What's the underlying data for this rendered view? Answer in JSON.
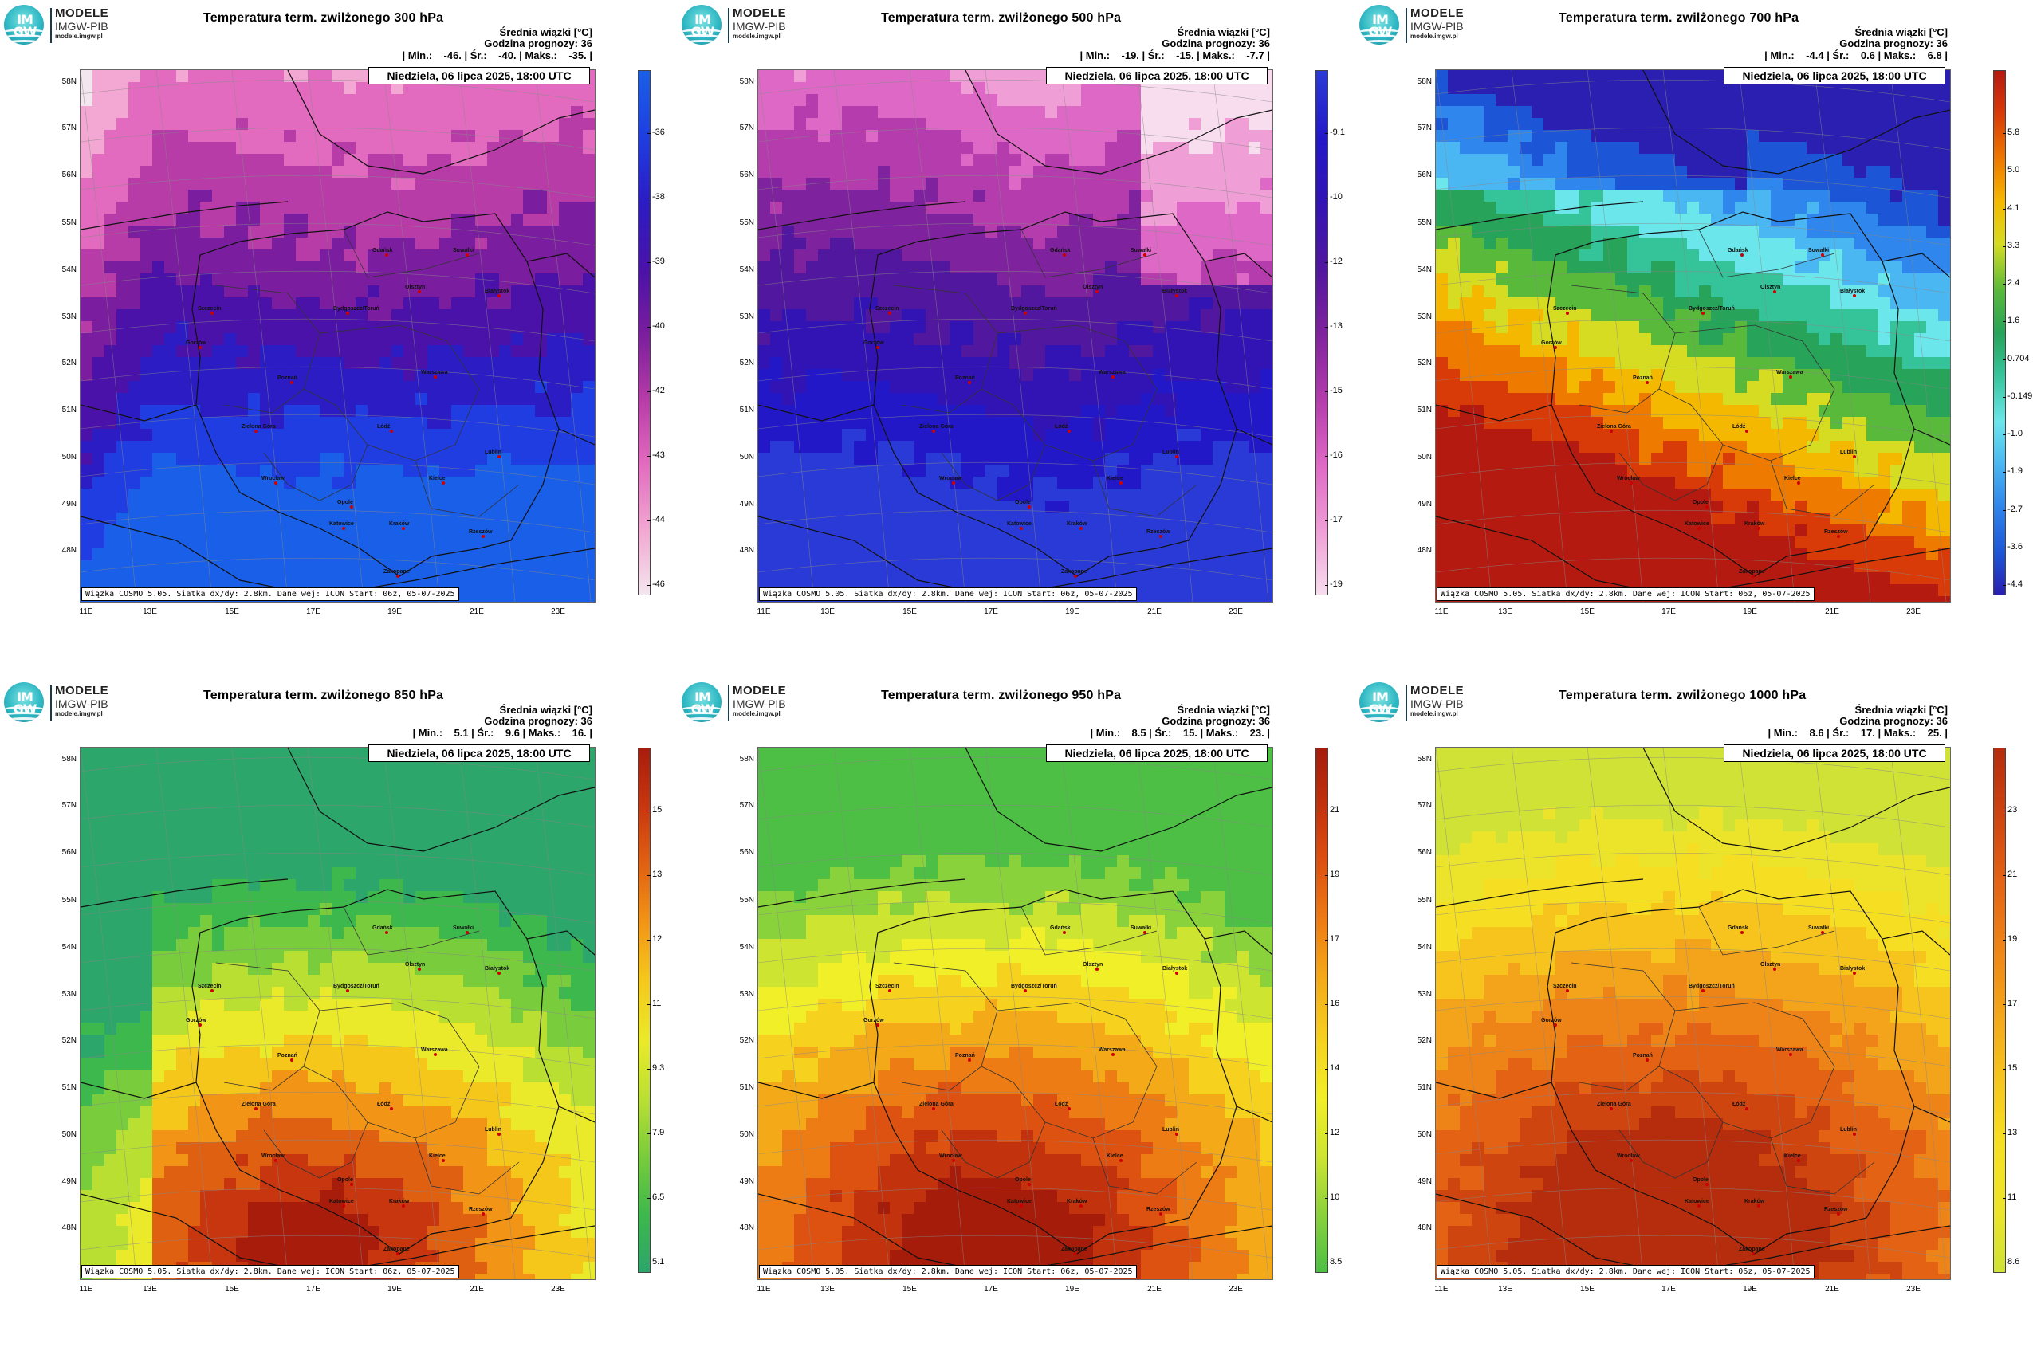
{
  "logo": {
    "brand_line1": "MODELE",
    "brand_line2": "IMGW-PIB",
    "url": "modele.imgw.pl",
    "mark_top": "IM",
    "mark_bottom": "GW"
  },
  "common": {
    "info_line1": "Średnia wiązki [°C]",
    "info_line2": "Godzina prognozy: 36",
    "date": "Niedziela, 06 lipca 2025, 18:00 UTC",
    "footer": "Wiązka COSMO 5.05. Siatka dx/dy: 2.8km. Dane wej: ICON Start: 06z, 05-07-2025",
    "lat_labels": [
      "58N",
      "57N",
      "56N",
      "55N",
      "54N",
      "53N",
      "52N",
      "51N",
      "50N",
      "49N",
      "48N"
    ],
    "lon_labels": [
      "11E",
      "13E",
      "15E",
      "17E",
      "19E",
      "21E",
      "23E"
    ]
  },
  "panels": [
    {
      "title": "Temperatura term. zwilżonego 300 hPa",
      "stats": "| Min.:    -46. | Śr.:    -40. | Maks.:    -35. |",
      "palette": "cold300",
      "colorbar_ticks": [
        "-36",
        "-38",
        "-39",
        "-40",
        "-42",
        "-43",
        "-44",
        "-46"
      ]
    },
    {
      "title": "Temperatura term. zwilżonego 500 hPa",
      "stats": "| Min.:    -19. | Śr.:    -15. | Maks.:    -7.7 |",
      "palette": "cold500",
      "colorbar_ticks": [
        "-9.1",
        "-10",
        "-12",
        "-13",
        "-15",
        "-16",
        "-17",
        "-19"
      ]
    },
    {
      "title": "Temperatura term. zwilżonego 700 hPa",
      "stats": "| Min.:    -4.4 | Śr.:    0.6 | Maks.:    6.8 |",
      "palette": "mid700",
      "colorbar_ticks": [
        "5.8",
        "5.0",
        "4.1",
        "3.3",
        "2.4",
        "1.6",
        "0.704",
        "-0.149",
        "-1.0",
        "-1.9",
        "-2.7",
        "-3.6",
        "-4.4"
      ]
    },
    {
      "title": "Temperatura term. zwilżonego 850 hPa",
      "stats": "| Min.:    5.1 | Śr.:    9.6 | Maks.:    16. |",
      "palette": "warm850",
      "colorbar_ticks": [
        "15",
        "13",
        "12",
        "11",
        "9.3",
        "7.9",
        "6.5",
        "5.1"
      ]
    },
    {
      "title": "Temperatura term. zwilżonego 950 hPa",
      "stats": "| Min.:    8.5 | Śr.:    15. | Maks.:    23. |",
      "palette": "warm950",
      "colorbar_ticks": [
        "21",
        "19",
        "17",
        "16",
        "14",
        "12",
        "10",
        "8.5"
      ]
    },
    {
      "title": "Temperatura term. zwilżonego 1000 hPa",
      "stats": "| Min.:    8.6 | Śr.:    17. | Maks.:    25. |",
      "palette": "warm1000",
      "colorbar_ticks": [
        "23",
        "21",
        "19",
        "17",
        "15",
        "13",
        "11",
        "8.6"
      ]
    }
  ],
  "cities": [
    "Gdańsk",
    "Olsztyn",
    "Suwałki",
    "Szczecin",
    "Bydgoszcz/Toruń",
    "Białystok",
    "Gorzów",
    "Poznań",
    "Warszawa",
    "Zielona Góra",
    "Łódź",
    "Lublin",
    "Wrocław",
    "Kielce",
    "Opole",
    "Katowice",
    "Kraków",
    "Rzeszów",
    "Zakopane"
  ],
  "colors": {
    "cold300": [
      "#f4e6ee",
      "#f2a8d2",
      "#e26bbf",
      "#b73ca8",
      "#7a1d9e",
      "#4a12a8",
      "#2b1cc4",
      "#1f3de0",
      "#1a5fe8"
    ],
    "cold500": [
      "#f7ddee",
      "#ef9fd6",
      "#de68c5",
      "#b43cad",
      "#7f229e",
      "#52179f",
      "#3214b4",
      "#2318c8",
      "#2a3ad6"
    ],
    "mid700": [
      "#2a1fb0",
      "#1c56d6",
      "#2f86ec",
      "#4ab7f2",
      "#6be6ea",
      "#35c49a",
      "#27a35a",
      "#58b93a",
      "#d6dc22",
      "#f5b800",
      "#ee7a00",
      "#d83a08",
      "#b51a10"
    ],
    "warm850": [
      "#2ca66a",
      "#3db84c",
      "#79cc3b",
      "#b9df33",
      "#eaea2a",
      "#f5c71b",
      "#f29416",
      "#e06012",
      "#c8360f",
      "#a81c0c"
    ],
    "warm950": [
      "#4cbf44",
      "#8ad23c",
      "#cde431",
      "#f1ef27",
      "#f6d21f",
      "#f4aa18",
      "#ee7c14",
      "#dd5210",
      "#c2320d",
      "#a51c0b"
    ],
    "warm1000": [
      "#cfe235",
      "#ece42a",
      "#f6df22",
      "#f6c41d",
      "#f3a41a",
      "#ee8417",
      "#e36214",
      "#cf4510",
      "#b52d0d"
    ]
  }
}
